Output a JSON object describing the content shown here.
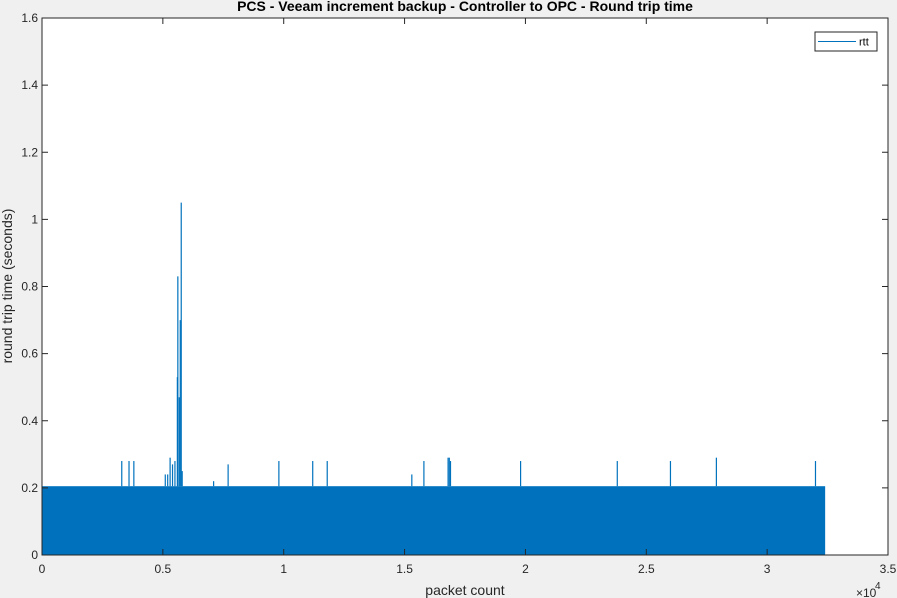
{
  "chart_data": {
    "type": "line",
    "title": "PCS - Veeam increment backup - Controller to OPC - Round trip time",
    "xlabel": "packet count",
    "ylabel": "round trip time (seconds)",
    "xlim": [
      0,
      35000
    ],
    "ylim": [
      0,
      1.6
    ],
    "x_ticks": [
      0,
      5000,
      10000,
      15000,
      20000,
      25000,
      30000,
      35000
    ],
    "x_tick_labels": [
      "0",
      "0.5",
      "1",
      "1.5",
      "2",
      "2.5",
      "3",
      "3.5"
    ],
    "x_exponent_label": "×10",
    "x_exponent_power": "4",
    "y_ticks": [
      0,
      0.2,
      0.4,
      0.6,
      0.8,
      1.0,
      1.2,
      1.4,
      1.6
    ],
    "y_tick_labels": [
      "0",
      "0.2",
      "0.4",
      "0.6",
      "0.8",
      "1",
      "1.2",
      "1.4",
      "1.6"
    ],
    "grid": false,
    "legend_position": "top-right",
    "series": [
      {
        "name": "rtt",
        "color": "#0072bd",
        "baseline_band": {
          "x_start": 0,
          "x_end": 32400,
          "y_low": 0.0,
          "y_high": 0.205
        },
        "spikes": [
          {
            "x": 3300,
            "y": 0.28
          },
          {
            "x": 3600,
            "y": 0.28
          },
          {
            "x": 3800,
            "y": 0.28
          },
          {
            "x": 5100,
            "y": 0.24
          },
          {
            "x": 5200,
            "y": 0.24
          },
          {
            "x": 5300,
            "y": 0.29
          },
          {
            "x": 5400,
            "y": 0.27
          },
          {
            "x": 5500,
            "y": 0.28
          },
          {
            "x": 5600,
            "y": 0.53
          },
          {
            "x": 5620,
            "y": 0.83
          },
          {
            "x": 5680,
            "y": 0.47
          },
          {
            "x": 5720,
            "y": 0.7
          },
          {
            "x": 5760,
            "y": 1.05
          },
          {
            "x": 5800,
            "y": 0.25
          },
          {
            "x": 7100,
            "y": 0.22
          },
          {
            "x": 7700,
            "y": 0.27
          },
          {
            "x": 9800,
            "y": 0.28
          },
          {
            "x": 11200,
            "y": 0.28
          },
          {
            "x": 11800,
            "y": 0.28
          },
          {
            "x": 15300,
            "y": 0.24
          },
          {
            "x": 15800,
            "y": 0.28
          },
          {
            "x": 16800,
            "y": 0.29
          },
          {
            "x": 16850,
            "y": 0.29
          },
          {
            "x": 16900,
            "y": 0.28
          },
          {
            "x": 19800,
            "y": 0.28
          },
          {
            "x": 23800,
            "y": 0.28
          },
          {
            "x": 26000,
            "y": 0.28
          },
          {
            "x": 27900,
            "y": 0.29
          },
          {
            "x": 32000,
            "y": 0.28
          }
        ]
      }
    ]
  }
}
